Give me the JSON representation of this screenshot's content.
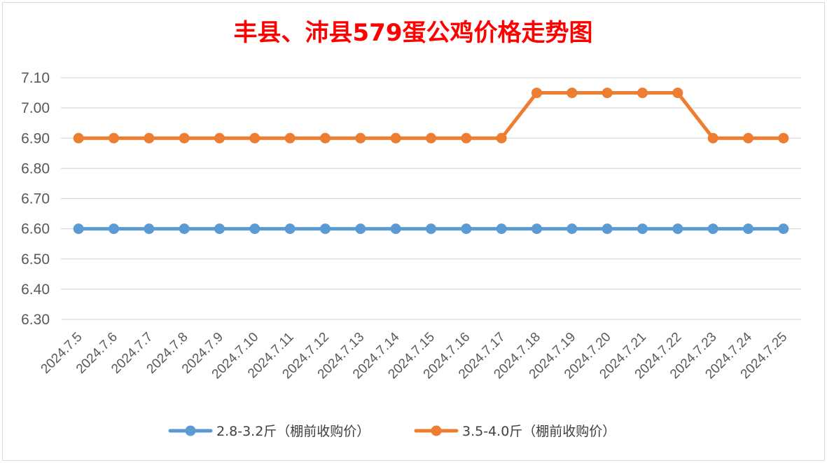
{
  "chart_data": {
    "type": "line",
    "title": "丰县、沛县579蛋公鸡价格走势图",
    "xlabel": "",
    "ylabel": "",
    "categories": [
      "2024.7.5",
      "2024.7.6",
      "2024.7.7",
      "2024.7.8",
      "2024.7.9",
      "2024.7.10",
      "2024.7.11",
      "2024.7.12",
      "2024.7.13",
      "2024.7.14",
      "2024.7.15",
      "2024.7.16",
      "2024.7.17",
      "2024.7.18",
      "2024.7.19",
      "2024.7.20",
      "2024.7.21",
      "2024.7.22",
      "2024.7.23",
      "2024.7.24",
      "2024.7.25"
    ],
    "yticks": [
      "6.30",
      "6.40",
      "6.50",
      "6.60",
      "6.70",
      "6.80",
      "6.90",
      "7.00",
      "7.10"
    ],
    "ylim": [
      6.3,
      7.1
    ],
    "grid": true,
    "legend_position": "bottom",
    "series": [
      {
        "name": "2.8-3.2斤（棚前收购价）",
        "color": "#5B9BD5",
        "values": [
          6.6,
          6.6,
          6.6,
          6.6,
          6.6,
          6.6,
          6.6,
          6.6,
          6.6,
          6.6,
          6.6,
          6.6,
          6.6,
          6.6,
          6.6,
          6.6,
          6.6,
          6.6,
          6.6,
          6.6,
          6.6
        ]
      },
      {
        "name": "3.5-4.0斤（棚前收购价）",
        "color": "#ED7D31",
        "values": [
          6.9,
          6.9,
          6.9,
          6.9,
          6.9,
          6.9,
          6.9,
          6.9,
          6.9,
          6.9,
          6.9,
          6.9,
          6.9,
          7.05,
          7.05,
          7.05,
          7.05,
          7.05,
          6.9,
          6.9,
          6.9
        ]
      }
    ],
    "title_color": "#FF0000",
    "grid_color": "#D9D9D9",
    "axis_text_color": "#595959"
  }
}
